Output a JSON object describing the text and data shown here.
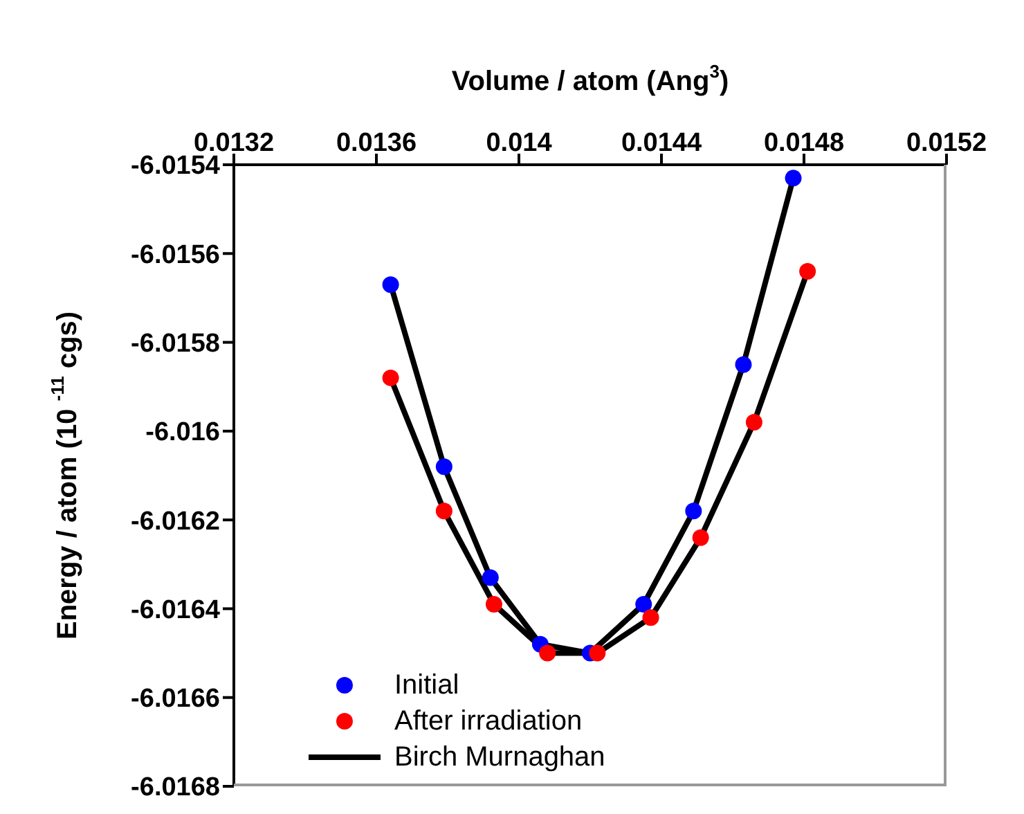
{
  "chart_data": {
    "type": "scatter",
    "xlabel": "Volume / atom (Ang$^{3}$)",
    "ylabel": "Energy / atom (10 $^{-11}$ cgs)",
    "xlim": [
      0.0132,
      0.0152
    ],
    "xticks": [
      0.0132,
      0.0136,
      0.014,
      0.0144,
      0.0148,
      0.0152
    ],
    "ylim": [
      -6.0168,
      -6.0154
    ],
    "yticks": [
      -6.0154,
      -6.0156,
      -6.0158,
      -6.016,
      -6.0162,
      -6.0164,
      -6.0166,
      -6.0168
    ],
    "grid": false,
    "legend": "bottom left",
    "marker": "circle",
    "series": [
      {
        "name": "Initial",
        "color": "#0000ff",
        "x": [
          0.01364,
          0.01379,
          0.01392,
          0.01406,
          0.0142,
          0.01435,
          0.01449,
          0.01463,
          0.01477
        ],
        "values": [
          -6.01567,
          -6.01608,
          -6.01633,
          -6.01648,
          -6.0165,
          -6.01639,
          -6.01618,
          -6.01585,
          -6.01543
        ]
      },
      {
        "name": "After irradiation",
        "color": "#ff0000",
        "x": [
          0.01364,
          0.01379,
          0.01393,
          0.01408,
          0.01422,
          0.01437,
          0.01451,
          0.01466,
          0.01481
        ],
        "values": [
          -6.01588,
          -6.01618,
          -6.01639,
          -6.0165,
          -6.0165,
          -6.01642,
          -6.01624,
          -6.01598,
          -6.01564
        ]
      },
      {
        "name": "Birch Murnaghan",
        "type": "line",
        "marker": "none",
        "color": "#000000",
        "x": [
          0.01364,
          0.01379,
          0.01392,
          0.01406,
          0.0142,
          0.01435,
          0.01449,
          0.01463,
          0.01477
        ],
        "values": [
          -6.01567,
          -6.01608,
          -6.01633,
          -6.01648,
          -6.0165,
          -6.01639,
          -6.01618,
          -6.01585,
          -6.01543
        ]
      },
      {
        "type": "line",
        "marker": "none",
        "color": "#000000",
        "x": [
          0.01364,
          0.01379,
          0.01393,
          0.01408,
          0.01422,
          0.01437,
          0.01451,
          0.01466,
          0.01481
        ],
        "values": [
          -6.01588,
          -6.01618,
          -6.01639,
          -6.0165,
          -6.0165,
          -6.01642,
          -6.01624,
          -6.01598,
          -6.01564
        ]
      }
    ]
  }
}
